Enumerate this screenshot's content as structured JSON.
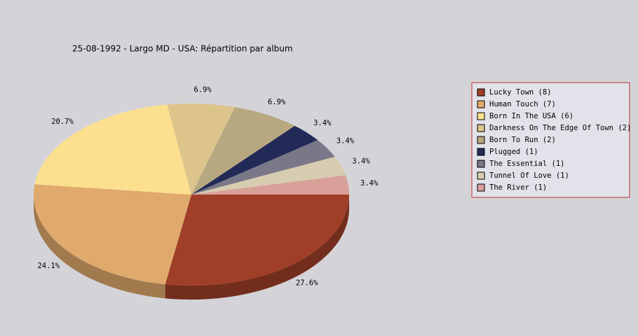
{
  "chart_data": {
    "type": "pie3d",
    "title": "25-08-1992 - Largo MD - USA:  Répartition par album",
    "categories": [
      "Lucky Town (8)",
      "Human Touch (7)",
      "Born In The USA (6)",
      "Darkness On The Edge Of Town (2)",
      "Born To Run (2)",
      "Plugged (1)",
      "The Essential (1)",
      "Tunnel Of Love (1)",
      "The River (1)"
    ],
    "values": [
      27.6,
      24.1,
      20.7,
      6.9,
      6.9,
      3.4,
      3.4,
      3.4,
      3.4
    ],
    "value_labels": [
      "27.6%",
      "24.1%",
      "20.7%",
      "6.9%",
      "6.9%",
      "3.4%",
      "3.4%",
      "3.4%",
      "3.4%"
    ],
    "colors": [
      "#a03e28",
      "#e0aa6c",
      "#fde08f",
      "#dcc48a",
      "#b8a880",
      "#222a58",
      "#7a7888",
      "#d8ccb0",
      "#d8a098"
    ],
    "legend": "right"
  }
}
